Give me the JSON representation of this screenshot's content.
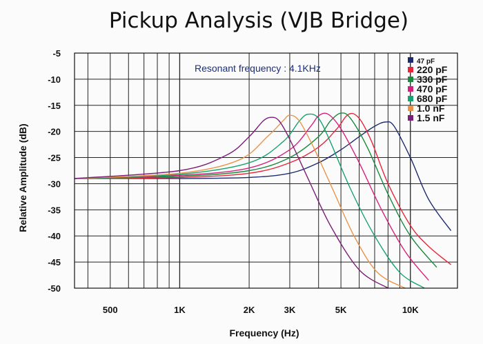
{
  "chart_data": {
    "type": "line",
    "title": "Pickup Analysis (VJB Bridge)",
    "xlabel": "Frequency (Hz)",
    "ylabel": "Relative Amplitude (dB)",
    "x_scale": "log",
    "xlim": [
      350,
      16000
    ],
    "ylim": [
      -50,
      -5
    ],
    "grid": true,
    "legend_position": "top-right",
    "y_ticks": [
      -5,
      -10,
      -15,
      -20,
      -25,
      -30,
      -35,
      -40,
      -45,
      -50
    ],
    "x_ticks": [
      {
        "value": 500,
        "label": "500"
      },
      {
        "value": 1000,
        "label": "1K"
      },
      {
        "value": 2000,
        "label": "2K"
      },
      {
        "value": 3000,
        "label": "3K"
      },
      {
        "value": 5000,
        "label": "5K"
      },
      {
        "value": 10000,
        "label": "10K"
      }
    ],
    "annotation": "Resonant frequency : 4.1KHz",
    "series": [
      {
        "name": "47 pF",
        "color": "#1c2a6e",
        "x": [
          350,
          1000,
          2000,
          3000,
          4000,
          5000,
          6000,
          7000,
          7800,
          8500,
          10000,
          12000,
          15000
        ],
        "y": [
          -29,
          -29,
          -28.8,
          -28,
          -26,
          -23.5,
          -21,
          -19,
          -18.2,
          -19,
          -25,
          -33,
          -39
        ]
      },
      {
        "name": "220 pF",
        "color": "#e8253a",
        "x": [
          350,
          1000,
          2000,
          3000,
          4000,
          4800,
          5400,
          6000,
          6800,
          8000,
          10000,
          12000,
          15000
        ],
        "y": [
          -29,
          -28.8,
          -28,
          -26,
          -23,
          -19.5,
          -16.7,
          -17.5,
          -22,
          -30,
          -38,
          -42,
          -45.5
        ]
      },
      {
        "name": "330 pF",
        "color": "#1a8a3c",
        "x": [
          350,
          1000,
          2000,
          3000,
          4000,
          4500,
          5000,
          5500,
          6500,
          8000,
          10000,
          13000
        ],
        "y": [
          -29,
          -28.6,
          -27.5,
          -25,
          -21,
          -18,
          -16.5,
          -17.5,
          -23,
          -32,
          -40,
          -46
        ]
      },
      {
        "name": "470 pF",
        "color": "#d81f7e",
        "x": [
          350,
          1000,
          2000,
          3000,
          3700,
          4000,
          4400,
          5000,
          6000,
          7500,
          9500,
          12000
        ],
        "y": [
          -29,
          -28.4,
          -27,
          -23.5,
          -19,
          -17,
          -16.7,
          -19.5,
          -26,
          -35,
          -43,
          -48.5
        ]
      },
      {
        "name": "680 pF",
        "color": "#17a36f",
        "x": [
          350,
          1000,
          2000,
          2800,
          3300,
          3600,
          4000,
          4500,
          5500,
          7000,
          9000,
          11500
        ],
        "y": [
          -29,
          -28.2,
          -26,
          -22,
          -18,
          -16.7,
          -17.5,
          -22,
          -31,
          -40,
          -47,
          -50
        ]
      },
      {
        "name": "1.0 nF",
        "color": "#e8944a",
        "x": [
          350,
          1000,
          1800,
          2400,
          2800,
          3000,
          3300,
          3800,
          4600,
          5700,
          7200,
          9500
        ],
        "y": [
          -29,
          -28,
          -25.5,
          -21,
          -18,
          -16.9,
          -18,
          -23,
          -31,
          -40,
          -47,
          -50
        ]
      },
      {
        "name": "1.5 nF",
        "color": "#7b1f78",
        "x": [
          350,
          1000,
          1600,
          2000,
          2300,
          2500,
          2700,
          3000,
          3600,
          4500,
          6000,
          8000
        ],
        "y": [
          -29,
          -27.5,
          -24.5,
          -21,
          -18,
          -17.3,
          -18,
          -21.5,
          -29,
          -38,
          -46.5,
          -50
        ]
      }
    ]
  }
}
